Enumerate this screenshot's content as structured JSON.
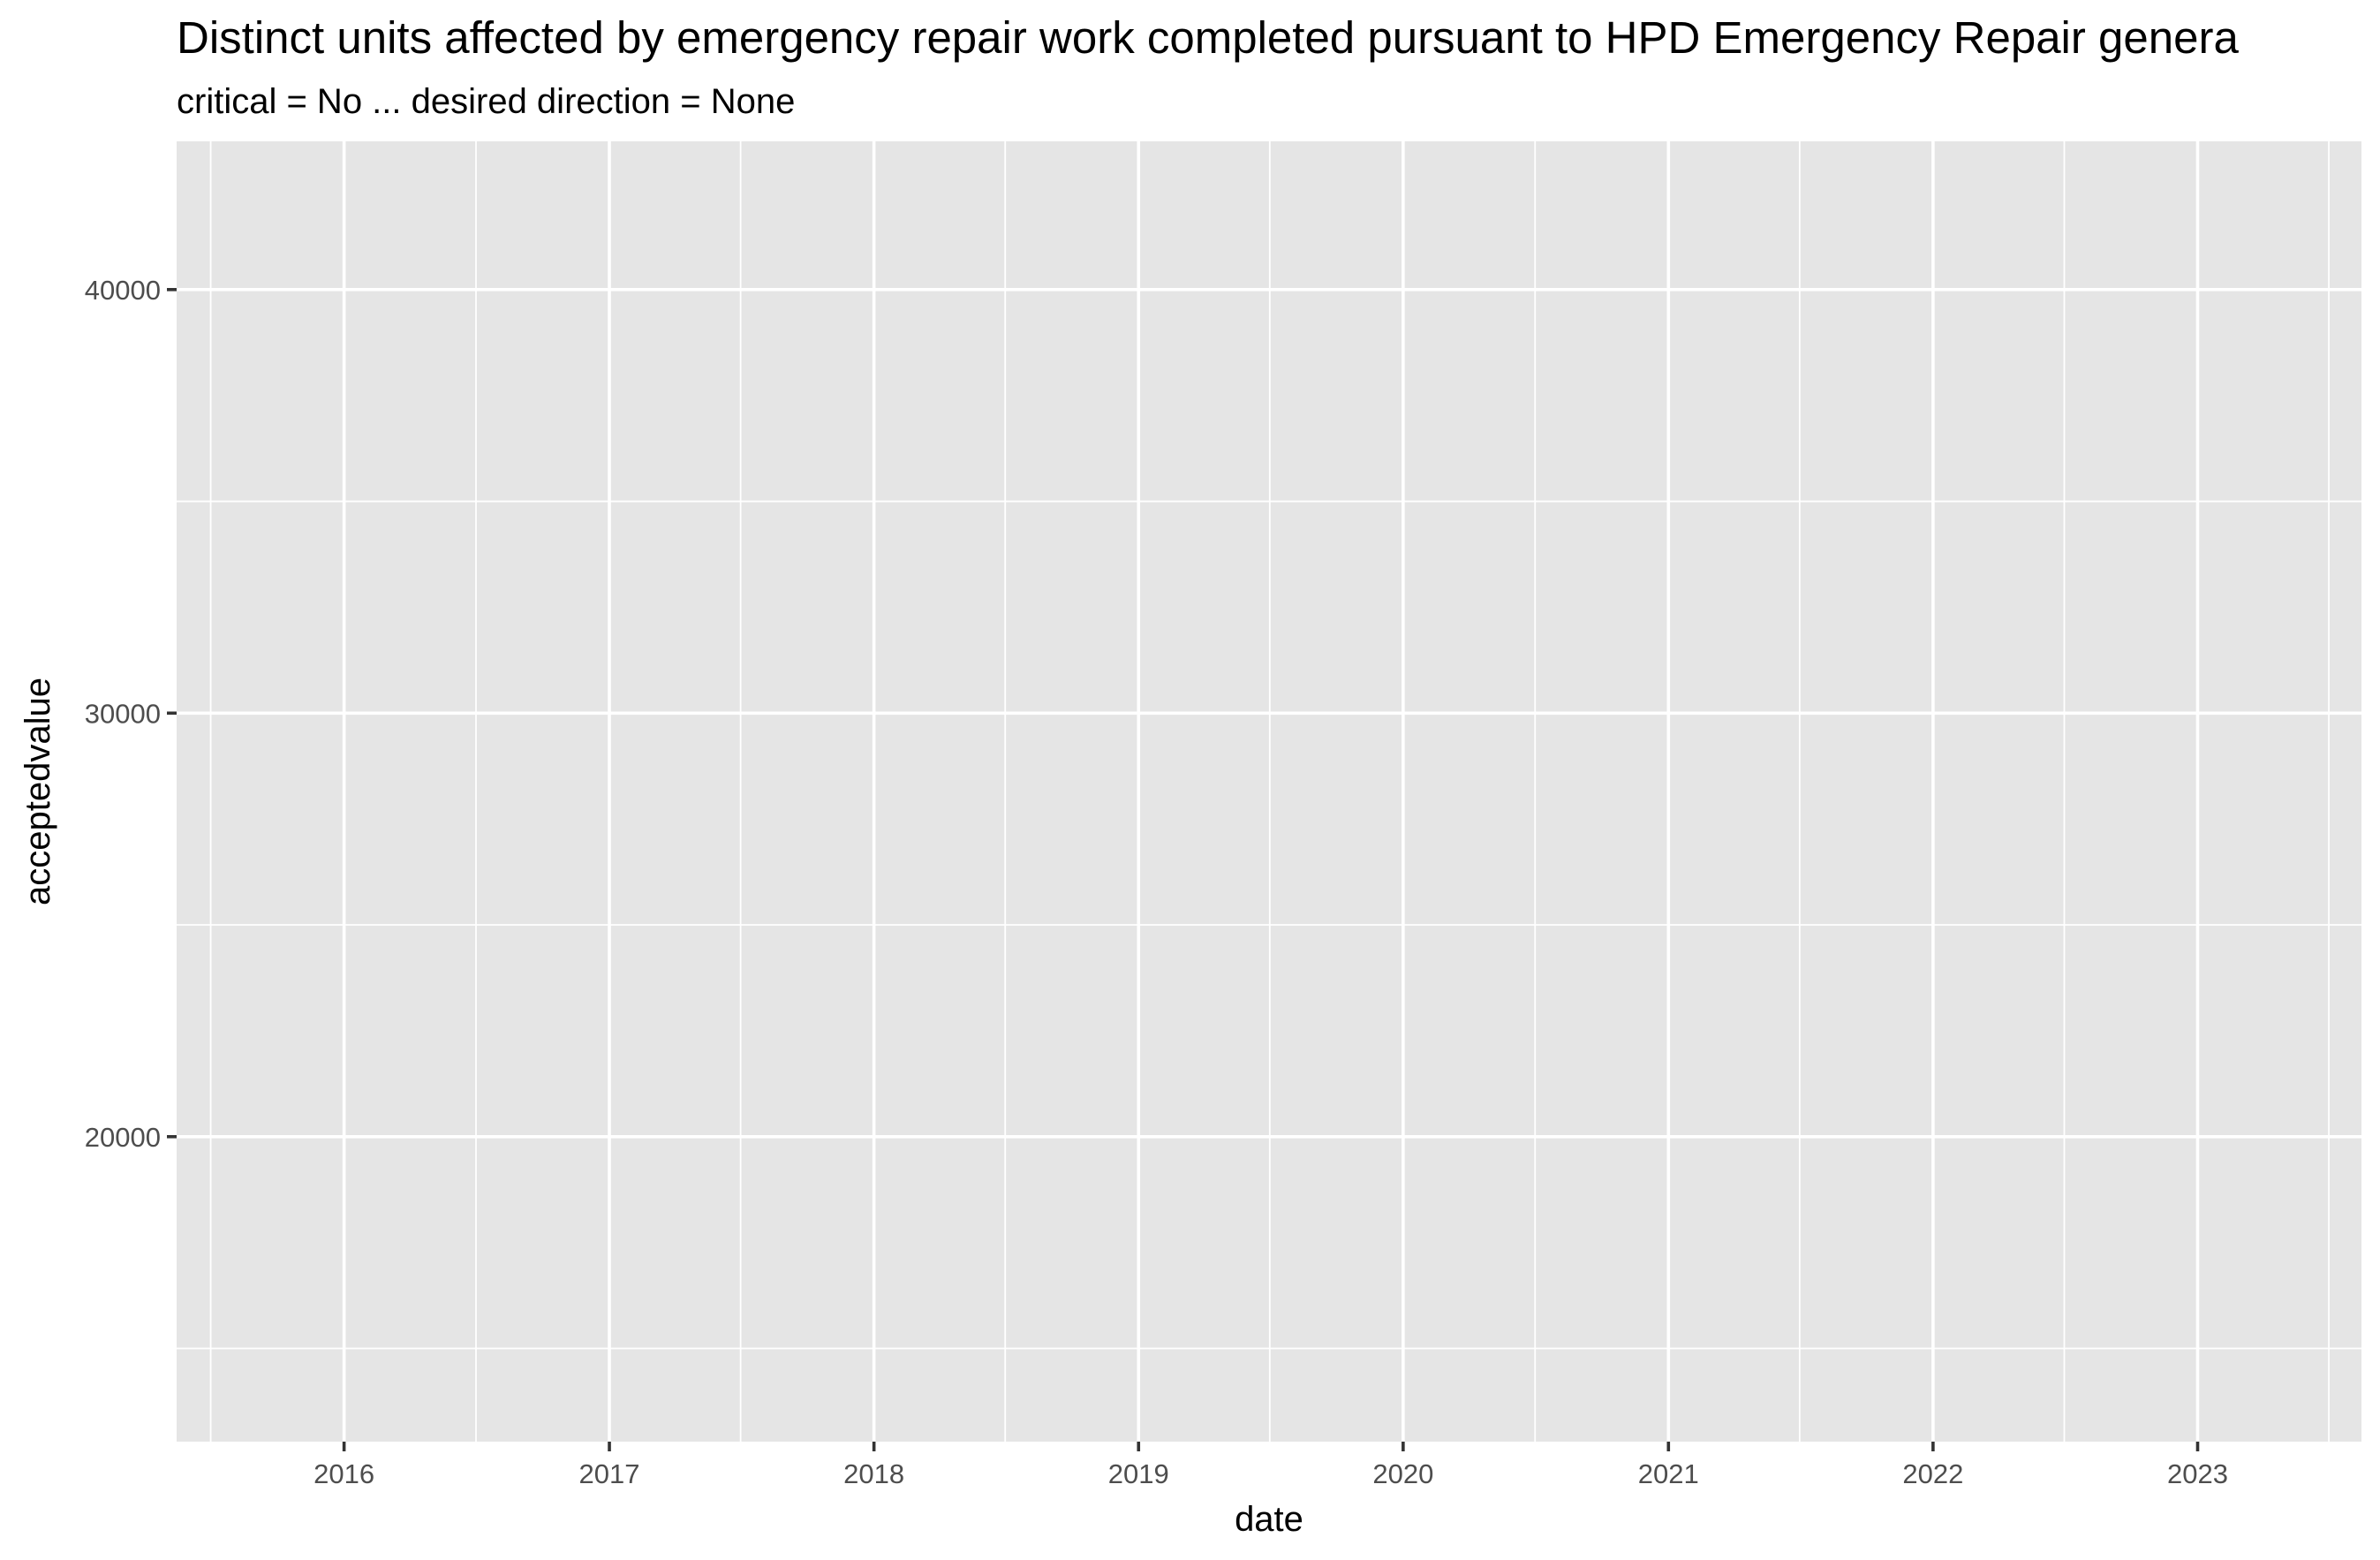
{
  "chart_data": {
    "type": "line",
    "title": "Distinct units affected by emergency repair work completed pursuant to HPD Emergency Repair genera",
    "subtitle": "critical = No ... desired direction = None",
    "xlabel": "date",
    "ylabel": "acceptedvalue",
    "x_ticks": [
      "2016",
      "2017",
      "2018",
      "2019",
      "2020",
      "2021",
      "2022",
      "2023"
    ],
    "xlim": [
      "2015-05-15",
      "2023-08-15"
    ],
    "y_ticks": [
      20000,
      30000,
      40000
    ],
    "ylim": [
      12800,
      43500
    ],
    "grid": true,
    "panel_color": "#e5e5e5",
    "series": []
  }
}
